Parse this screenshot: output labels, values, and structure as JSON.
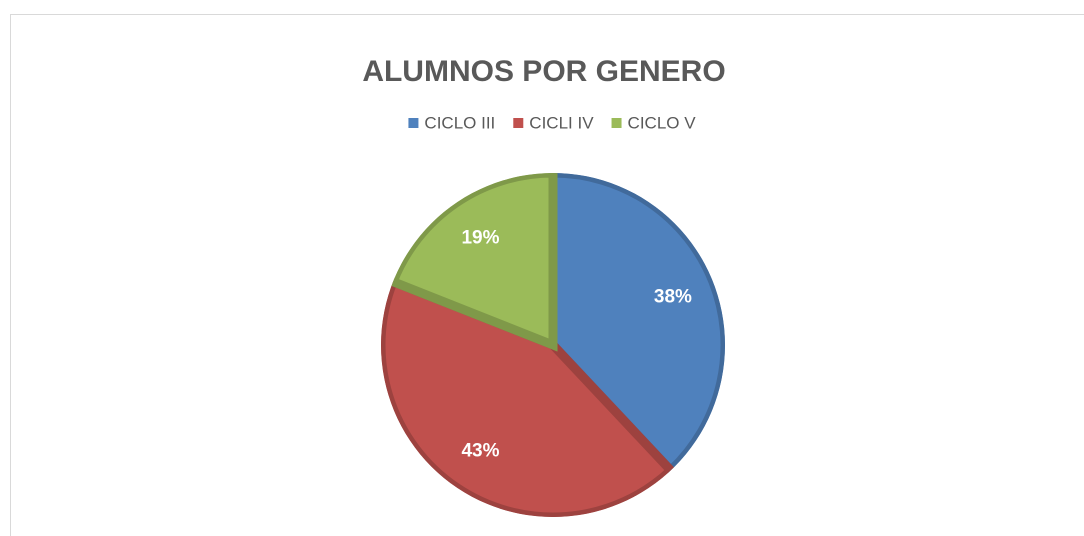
{
  "chart_data": {
    "type": "pie",
    "title": "ALUMNOS POR GENERO",
    "categories": [
      "CICLO III",
      "CICLI IV",
      "CICLO V"
    ],
    "values": [
      38,
      43,
      19
    ],
    "value_labels": [
      "38%",
      "43%",
      "19%"
    ],
    "colors": [
      "#4f81bd",
      "#c0504d",
      "#9bbb59"
    ],
    "legend": "top"
  }
}
